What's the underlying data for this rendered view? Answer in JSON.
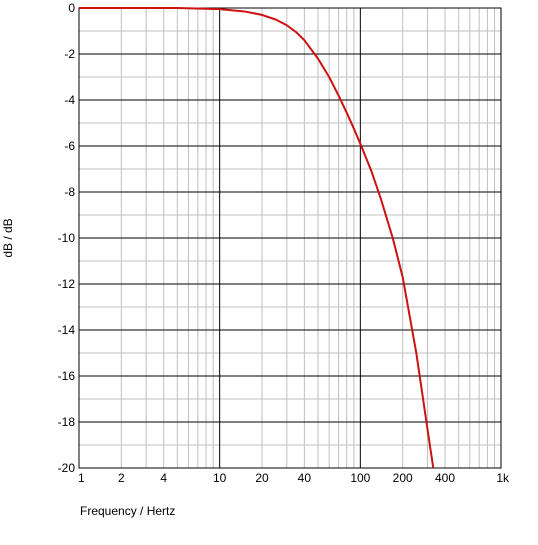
{
  "chart_data": {
    "type": "line",
    "xlabel": "Frequency / Hertz",
    "ylabel": "dB / dB",
    "x_scale": "log",
    "xlim": [
      1,
      1000
    ],
    "ylim": [
      -20,
      0
    ],
    "grid": true,
    "x_ticks": [
      {
        "value": 1,
        "label": "1"
      },
      {
        "value": 2,
        "label": "2"
      },
      {
        "value": 4,
        "label": "4"
      },
      {
        "value": 10,
        "label": "10"
      },
      {
        "value": 20,
        "label": "20"
      },
      {
        "value": 40,
        "label": "40"
      },
      {
        "value": 100,
        "label": "100"
      },
      {
        "value": 200,
        "label": "200"
      },
      {
        "value": 400,
        "label": "400"
      },
      {
        "value": 1000,
        "label": "1k"
      }
    ],
    "y_ticks": [
      {
        "value": 0,
        "label": "0"
      },
      {
        "value": -2,
        "label": "-2"
      },
      {
        "value": -4,
        "label": "-4"
      },
      {
        "value": -6,
        "label": "-6"
      },
      {
        "value": -8,
        "label": "-8"
      },
      {
        "value": -10,
        "label": "-10"
      },
      {
        "value": -12,
        "label": "-12"
      },
      {
        "value": -14,
        "label": "-14"
      },
      {
        "value": -16,
        "label": "-16"
      },
      {
        "value": -18,
        "label": "-18"
      },
      {
        "value": -20,
        "label": "-20"
      }
    ],
    "series": [
      {
        "color": "#cc1111",
        "x": [
          1,
          5,
          10,
          15,
          20,
          25,
          30,
          35,
          40,
          50,
          60,
          70,
          80,
          90,
          100,
          120,
          140,
          170,
          200,
          250,
          300,
          330
        ],
        "y": [
          0,
          0,
          -0.05,
          -0.15,
          -0.3,
          -0.5,
          -0.75,
          -1.05,
          -1.4,
          -2.2,
          -3.0,
          -3.8,
          -4.55,
          -5.25,
          -5.9,
          -7.1,
          -8.3,
          -10.0,
          -11.7,
          -15.0,
          -18.3,
          -20.0
        ]
      }
    ]
  }
}
